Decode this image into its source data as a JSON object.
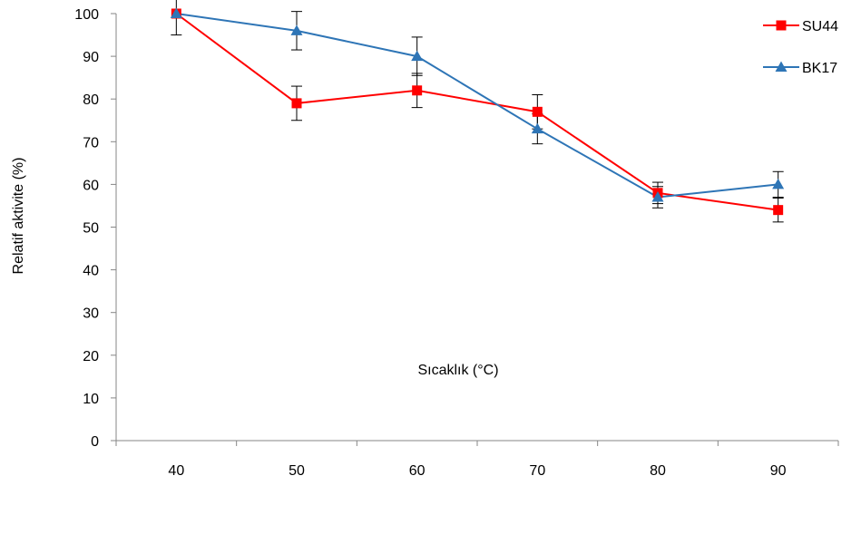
{
  "chart_data": {
    "type": "line",
    "title": "",
    "xlabel": "Sıcaklık (°C)",
    "ylabel": "Relatif aktivite (%)",
    "ylim": [
      0,
      100
    ],
    "yticks": [
      0,
      10,
      20,
      30,
      40,
      50,
      60,
      70,
      80,
      90,
      100
    ],
    "categories": [
      "40",
      "50",
      "60",
      "70",
      "80",
      "90"
    ],
    "legend_position": "right",
    "grid": false,
    "series": [
      {
        "name": "SU44",
        "color": "#ff0000",
        "marker": "square",
        "values": [
          100,
          79,
          82,
          77,
          58,
          54
        ],
        "errors": [
          5,
          4,
          4,
          4,
          2.5,
          2.8
        ]
      },
      {
        "name": "BK17",
        "color": "#2e75b6",
        "marker": "triangle",
        "values": [
          100,
          96,
          90,
          73,
          57,
          60
        ],
        "errors": [
          0,
          4.5,
          4.5,
          3.5,
          2.5,
          3
        ]
      }
    ]
  }
}
